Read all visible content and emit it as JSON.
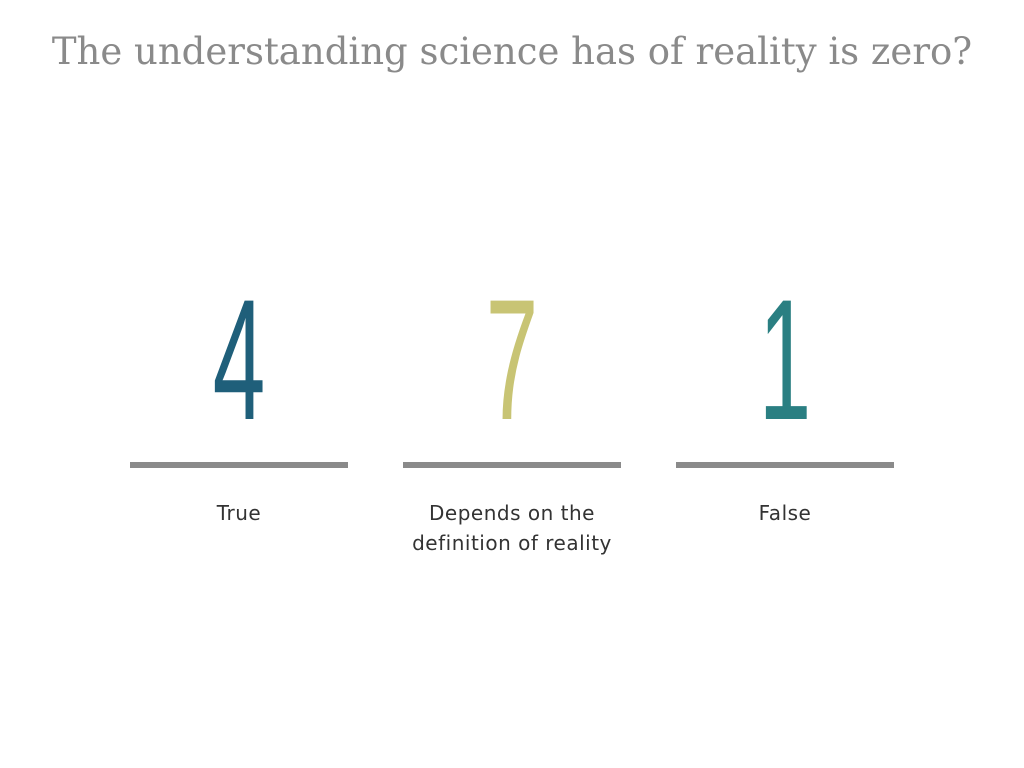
{
  "title": "The understanding science has of reality is zero?",
  "options": [
    {
      "count": "4",
      "label": "True",
      "color": "#1f5f7a"
    },
    {
      "count": "7",
      "label": "Depends on the definition of reality",
      "color": "#c8c474"
    },
    {
      "count": "1",
      "label": "False",
      "color": "#2a7f82"
    }
  ]
}
